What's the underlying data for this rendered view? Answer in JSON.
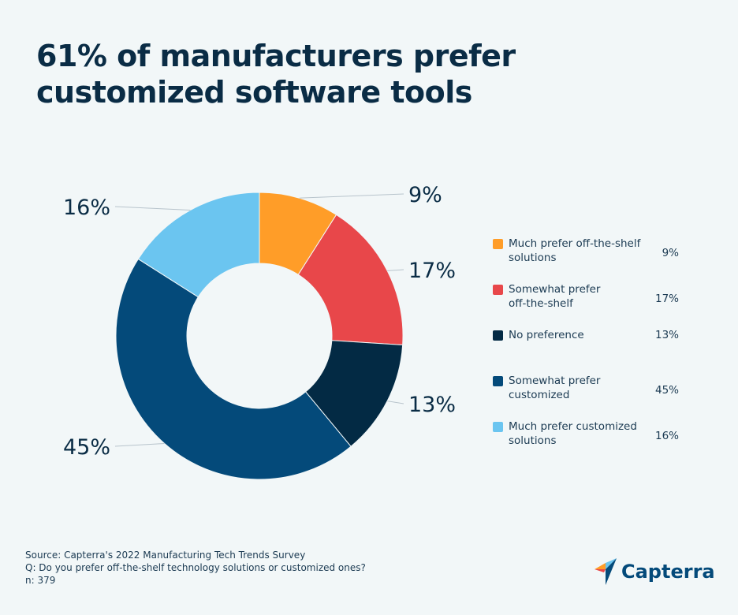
{
  "title": "61% of manufacturers prefer customized software tools",
  "chart_data": {
    "type": "pie",
    "donut": true,
    "categories": [
      "Much prefer off-the-shelf solutions",
      "Somewhat prefer off-the-shelf",
      "No preference",
      "Somewhat prefer customized",
      "Much prefer customized solutions"
    ],
    "values": [
      9,
      17,
      13,
      45,
      16
    ],
    "labels": [
      "9%",
      "17%",
      "13%",
      "45%",
      "16%"
    ],
    "colors": [
      "#ff9d28",
      "#e8474a",
      "#032a44",
      "#044a7a",
      "#6bc5f0"
    ],
    "legend_placement": "right"
  },
  "footer": {
    "source": "Source: Capterra's 2022 Manufacturing Tech Trends Survey",
    "question": "Q: Do you prefer off-the-shelf technology solutions or customized ones?",
    "n": "n: 379"
  },
  "logo": {
    "text": "Capterra"
  }
}
